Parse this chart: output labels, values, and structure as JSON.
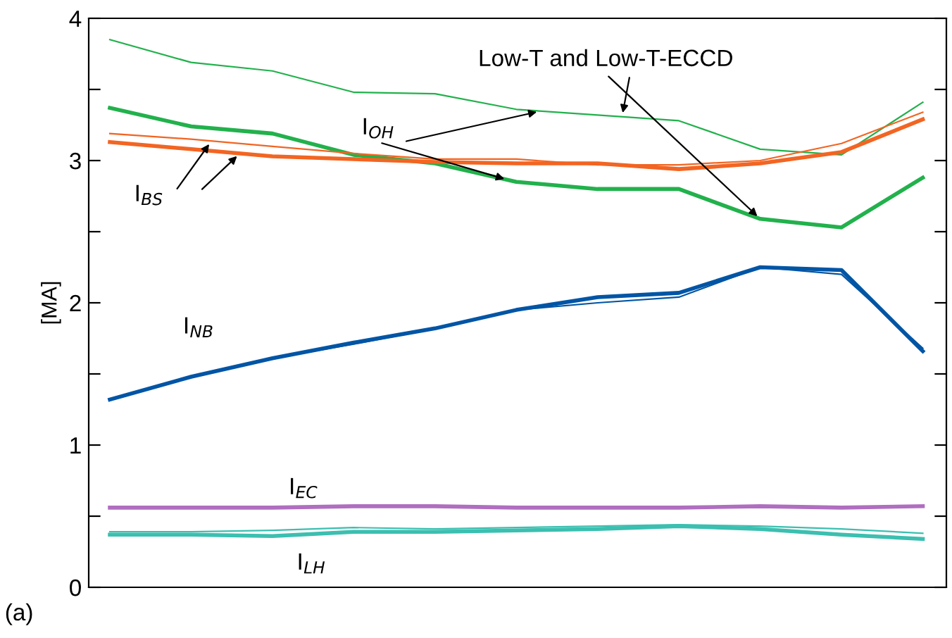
{
  "chart_data": {
    "type": "line",
    "categories": [
      null,
      null,
      null,
      null,
      null,
      null,
      null,
      null,
      null,
      null,
      null
    ],
    "series": [
      {
        "color": "#22b14c",
        "values": [
          3.37,
          3.24,
          3.19,
          3.04,
          2.98,
          2.85,
          2.8,
          2.8,
          2.59,
          2.53,
          2.88
        ]
      },
      {
        "color": "#22b14c",
        "values": [
          3.85,
          3.69,
          3.63,
          3.48,
          3.47,
          3.36,
          3.32,
          3.28,
          3.08,
          3.04,
          3.41
        ]
      },
      {
        "color": "#f26522",
        "values": [
          3.13,
          3.08,
          3.03,
          3.01,
          2.99,
          2.98,
          2.98,
          2.94,
          2.98,
          3.06,
          3.29
        ]
      },
      {
        "color": "#f26522",
        "values": [
          3.19,
          3.15,
          3.1,
          3.05,
          3.01,
          3.01,
          2.97,
          2.97,
          3.0,
          3.12,
          3.34
        ]
      },
      {
        "color": "#0055a5",
        "values": [
          1.32,
          1.48,
          1.61,
          1.72,
          1.82,
          1.95,
          2.04,
          2.07,
          2.25,
          2.23,
          1.66
        ]
      },
      {
        "color": "#0055a5",
        "values": [
          1.32,
          1.48,
          1.61,
          1.71,
          1.82,
          1.95,
          2.0,
          2.04,
          2.25,
          2.2,
          1.68
        ]
      },
      {
        "color": "#b06ec0",
        "values": [
          0.56,
          0.56,
          0.56,
          0.57,
          0.57,
          0.56,
          0.56,
          0.56,
          0.57,
          0.56,
          0.57
        ]
      },
      {
        "color": "#3bbfb0",
        "values": [
          0.39,
          0.39,
          0.4,
          0.42,
          0.41,
          0.42,
          0.43,
          0.44,
          0.43,
          0.41,
          0.38
        ]
      },
      {
        "color": "#3bbfb0",
        "values": [
          0.37,
          0.37,
          0.36,
          0.39,
          0.39,
          0.4,
          0.41,
          0.43,
          0.41,
          0.37,
          0.34
        ]
      }
    ],
    "ylabel": "[MA]",
    "ylim": [
      0,
      4
    ],
    "yticks": [
      0,
      {
        "value": 0.5,
        "label": null
      },
      1,
      {
        "value": 1.5,
        "label": null
      },
      2,
      {
        "value": 2.5,
        "label": null
      },
      3,
      {
        "value": 3.5,
        "label": null
      },
      4
    ],
    "grid": false,
    "annotations": [
      "Low-T and Low-T-ECCD",
      "I$_{OH}$",
      "I$_{BS}$",
      "I$_{NB}$",
      "I$_{EC}$",
      "I$_{LH}$",
      "(a)"
    ]
  }
}
